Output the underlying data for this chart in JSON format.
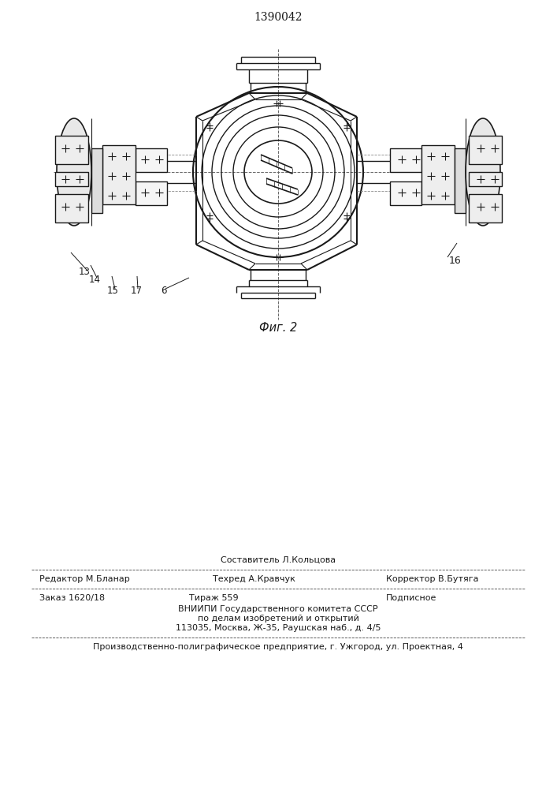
{
  "title_number": "1390042",
  "fig_label": "Фиг. 2",
  "bg_color": "#ffffff",
  "line_color": "#1a1a1a",
  "footer": {
    "line1_above": "Составитель Л.Кольцова",
    "line1_left": "Редактор М.Бланар",
    "line1_center": "Техред А.Кравчук",
    "line1_right": "Корректор В.Бутяга",
    "line2_left": "Заказ 1620/18",
    "line2_center": "Тираж 559",
    "line2_right": "Подписное",
    "line3": "ВНИИПИ Государственного комитета СССР",
    "line4": "по делам изобретений и открытий",
    "line5": "113035, Москва, Ж-35, Раушская наб., д. 4/5",
    "line6": "Производственно-полиграфическое предприятие, г. Ужгород, ул. Проектная, 4"
  }
}
